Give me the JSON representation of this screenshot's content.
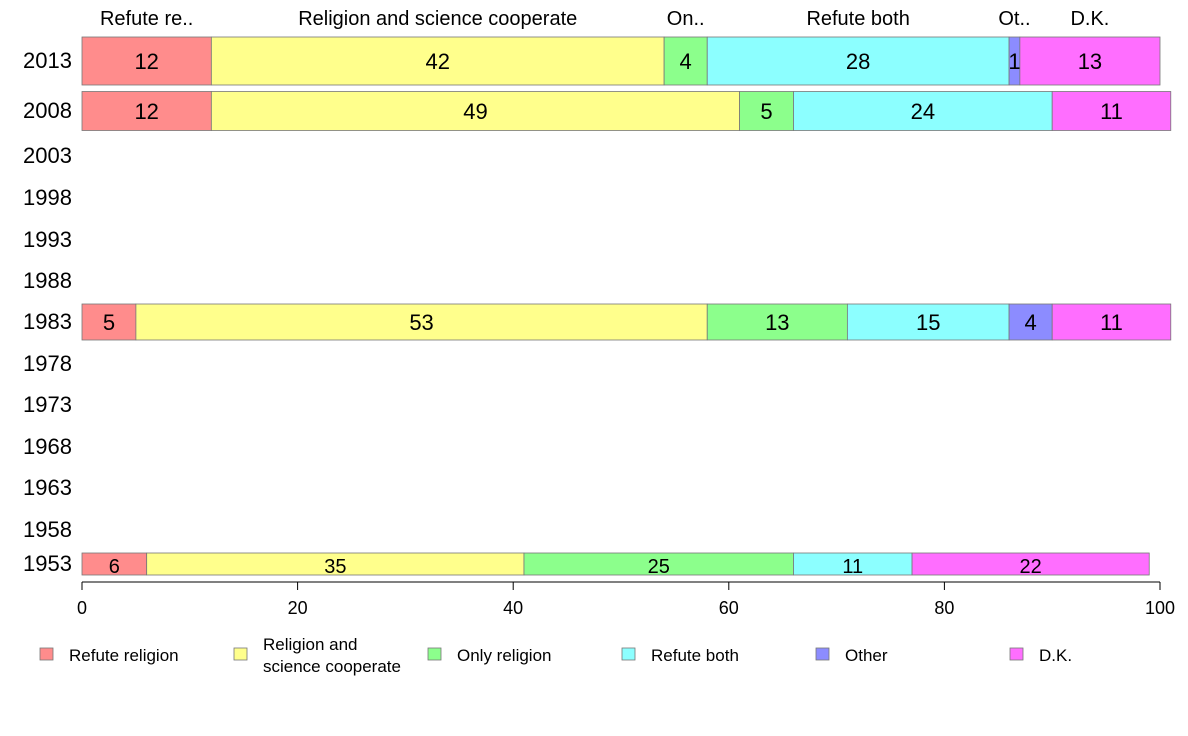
{
  "chart_data": {
    "type": "bar",
    "orientation": "horizontal",
    "stacked": true,
    "xlim": [
      0,
      100
    ],
    "x_ticks": [
      "0",
      "20",
      "40",
      "60",
      "80",
      "100"
    ],
    "categories": [
      "2013",
      "2008",
      "2003",
      "1998",
      "1993",
      "1988",
      "1983",
      "1978",
      "1973",
      "1968",
      "1963",
      "1958",
      "1953"
    ],
    "top_labels": [
      "Refute re..",
      "Religion and science cooperate",
      "On..",
      "Refute both",
      "Ot..",
      "D.K."
    ],
    "legend_position": "bottom",
    "series": [
      {
        "name": "Refute religion",
        "legend_lines": [
          "Refute religion"
        ],
        "color": "#ff8c8c",
        "values": [
          12,
          12,
          null,
          null,
          null,
          null,
          5,
          null,
          null,
          null,
          null,
          null,
          6
        ]
      },
      {
        "name": "Religion and science cooperate",
        "legend_lines": [
          "Religion and",
          "science cooperate"
        ],
        "color": "#ffff8c",
        "values": [
          42,
          49,
          null,
          null,
          null,
          null,
          53,
          null,
          null,
          null,
          null,
          null,
          35
        ]
      },
      {
        "name": "Only religion",
        "legend_lines": [
          "Only religion"
        ],
        "color": "#8cff8c",
        "values": [
          4,
          5,
          null,
          null,
          null,
          null,
          13,
          null,
          null,
          null,
          null,
          null,
          25
        ]
      },
      {
        "name": "Refute both",
        "legend_lines": [
          "Refute both"
        ],
        "color": "#8cffff",
        "values": [
          28,
          24,
          null,
          null,
          null,
          null,
          15,
          null,
          null,
          null,
          null,
          null,
          11
        ]
      },
      {
        "name": "Other",
        "legend_lines": [
          "Other"
        ],
        "color": "#8c8cff",
        "values": [
          1,
          0,
          null,
          null,
          null,
          null,
          4,
          null,
          null,
          null,
          null,
          null,
          0
        ]
      },
      {
        "name": "D.K.",
        "legend_lines": [
          "D.K."
        ],
        "color": "#ff6eff",
        "values": [
          13,
          11,
          null,
          null,
          null,
          null,
          11,
          null,
          null,
          null,
          null,
          null,
          22
        ]
      }
    ]
  }
}
